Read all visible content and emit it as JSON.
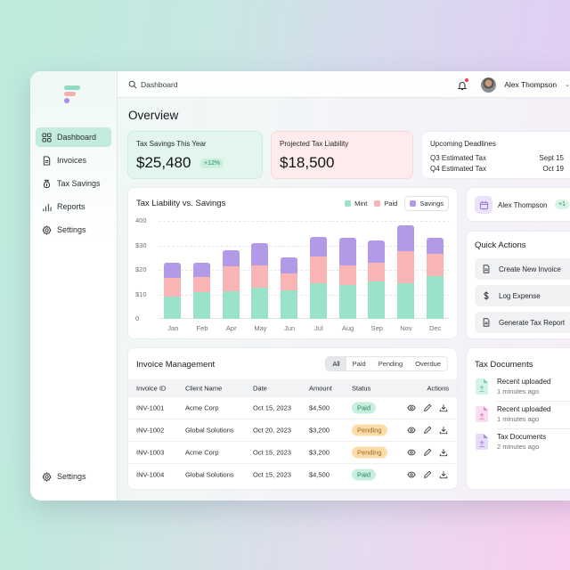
{
  "sidebar": {
    "items": [
      {
        "label": "Dashboard",
        "icon": "grid-icon",
        "active": true
      },
      {
        "label": "Invoices",
        "icon": "document-icon"
      },
      {
        "label": "Tax Savings",
        "icon": "money-bag-icon"
      },
      {
        "label": "Reports",
        "icon": "bar-chart-icon"
      },
      {
        "label": "Settings",
        "icon": "gear-icon"
      }
    ],
    "bottom": {
      "label": "Settings",
      "icon": "gear-icon"
    }
  },
  "topbar": {
    "search_label": "Dashboard",
    "user_name": "Alex Thompson"
  },
  "page": {
    "title": "Overview"
  },
  "stats": {
    "savings": {
      "label": "Tax Savings This Year",
      "value": "$25,480",
      "change": "+12%"
    },
    "liability": {
      "label": "Projected Tax Liability",
      "value": "$18,500"
    },
    "deadlines": {
      "label": "Upcoming Deadlines",
      "rows": [
        {
          "name": "Q3 Estimated Tax",
          "date": "Sept 15"
        },
        {
          "name": "Q4 Estimated Tax",
          "date": "Oct 19"
        }
      ]
    }
  },
  "chart": {
    "title": "Tax Liability vs. Savings",
    "legend": [
      "Mint",
      "Paid",
      "Savings"
    ],
    "yticks": [
      "0",
      "$10",
      "$20",
      "$30",
      "400"
    ]
  },
  "chart_data": {
    "type": "bar",
    "stacked": true,
    "title": "Tax Liability vs. Savings",
    "xlabel": "",
    "ylabel": "",
    "ytick_labels": [
      "0",
      "$10",
      "$20",
      "$30",
      "400"
    ],
    "ylim": [
      0,
      40
    ],
    "grid": true,
    "legend_position": "top-right",
    "categories": [
      "Jan",
      "Feb",
      "Apr",
      "May",
      "Jun",
      "Jul",
      "Aug",
      "Sep",
      "Nov",
      "Dec"
    ],
    "series": [
      {
        "name": "Mint",
        "color": "#9ae2c8",
        "values": [
          9,
          11,
          11.3,
          12.7,
          11.6,
          14.4,
          14,
          15.3,
          14.7,
          17.6
        ]
      },
      {
        "name": "Paid",
        "color": "#f9b4b6",
        "values": [
          7.7,
          6,
          10.1,
          9.3,
          6.9,
          10.9,
          8,
          7.7,
          12.8,
          9.1
        ]
      },
      {
        "name": "Savings",
        "color": "#b39ae8",
        "values": [
          6.3,
          6,
          6.6,
          9,
          6.5,
          8.2,
          11,
          9,
          10.8,
          6.3
        ]
      }
    ]
  },
  "profile_card": {
    "name": "Alex Thompson",
    "badge": "+1"
  },
  "quick_actions": {
    "title": "Quick Actions",
    "items": [
      {
        "label": "Create New Invoice",
        "icon": "document-icon"
      },
      {
        "label": "Log Expense",
        "icon": "dollar-icon"
      },
      {
        "label": "Generate Tax Report",
        "icon": "document-icon"
      }
    ]
  },
  "invoices": {
    "title": "Invoice Management",
    "filters": [
      "All",
      "Paid",
      "Pending",
      "Overdue"
    ],
    "active_filter": "All",
    "columns": [
      "Invoice ID",
      "Client Name",
      "Date",
      "Amount",
      "Status",
      "Actions"
    ],
    "rows": [
      {
        "id": "INV-1001",
        "client": "Acme Corp",
        "date": "Oct 15, 2023",
        "amount": "$4,500",
        "status": "Paid"
      },
      {
        "id": "INV-1002",
        "client": "Global Solutions",
        "date": "Oct 20, 2023",
        "amount": "$3,200",
        "status": "Pending"
      },
      {
        "id": "INV-1003",
        "client": "Acme Corp",
        "date": "Oct 15, 2023",
        "amount": "$3,200",
        "status": "Pending"
      },
      {
        "id": "INV-1004",
        "client": "Global Solutions",
        "date": "Oct 15, 2023",
        "amount": "$4,500",
        "status": "Paid"
      }
    ]
  },
  "documents": {
    "title": "Tax Documents",
    "items": [
      {
        "name": "Recent uploaded",
        "time": "1 minutes ago",
        "color": "#d5f2e6",
        "accent": "#7ad1ab"
      },
      {
        "name": "Recent uploaded",
        "time": "1 minutes ago",
        "color": "#f9dcef",
        "accent": "#e48cc5"
      },
      {
        "name": "Tax Documents",
        "time": "2 minutes ago",
        "color": "#e6dcf8",
        "accent": "#a98ee6"
      }
    ]
  },
  "colors": {
    "mint": "#9ae2c8",
    "paid": "#f9b4b6",
    "savings": "#b39ae8",
    "active_nav": "#c3ecdc"
  }
}
